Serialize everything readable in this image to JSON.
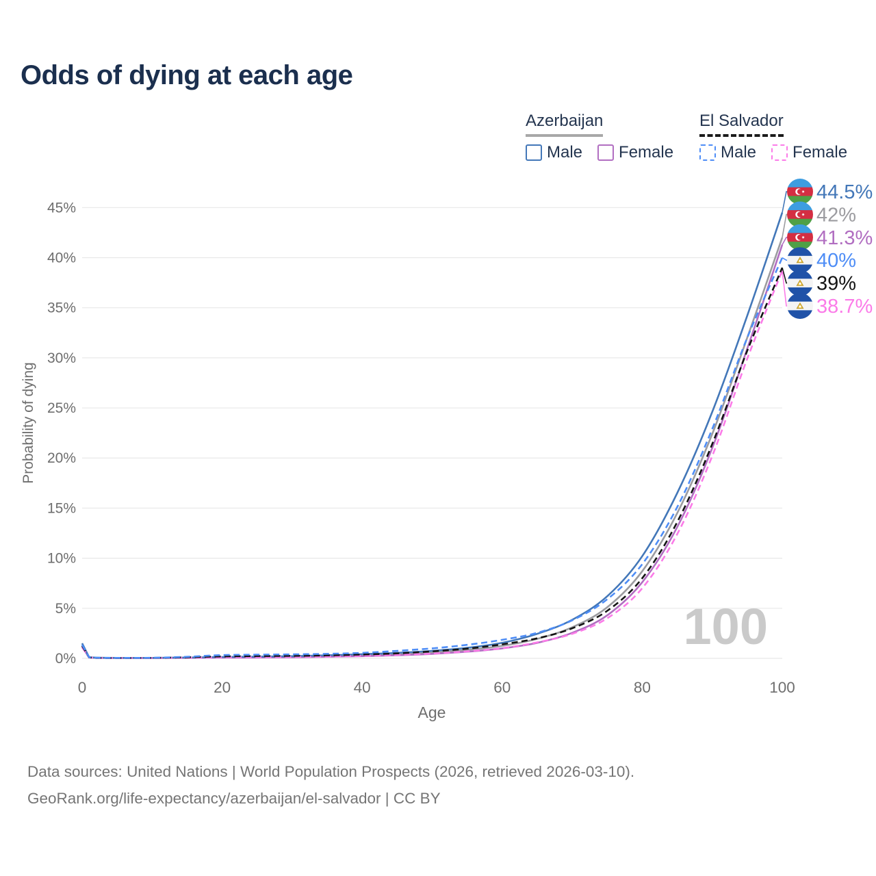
{
  "title": "Odds of dying at each age",
  "legend": {
    "groups": [
      {
        "id": "azerbaijan",
        "label": "Azerbaijan",
        "line_style": "solid",
        "line_color": "#a8a8a8",
        "items": [
          {
            "id": "male",
            "label": "Male",
            "color": "#4377b8",
            "dashed": false
          },
          {
            "id": "female",
            "label": "Female",
            "color": "#b16ec1",
            "dashed": false
          }
        ]
      },
      {
        "id": "el-salvador",
        "label": "El Salvador",
        "line_style": "dashed",
        "line_color": "#1b1b1b",
        "items": [
          {
            "id": "male",
            "label": "Male",
            "color": "#4e8df6",
            "dashed": true
          },
          {
            "id": "female",
            "label": "Female",
            "color": "#fb7be8",
            "dashed": true
          }
        ]
      }
    ]
  },
  "axes": {
    "x": {
      "label": "Age",
      "range": [
        0,
        100
      ],
      "ticks": [
        0,
        20,
        40,
        60,
        80,
        100
      ]
    },
    "y": {
      "label": "Probability of dying",
      "range": [
        0,
        45
      ],
      "tick_values": [
        0,
        5,
        10,
        15,
        20,
        25,
        30,
        35,
        40,
        45
      ],
      "tick_labels": [
        "0%",
        "5%",
        "10%",
        "15%",
        "20%",
        "25%",
        "30%",
        "35%",
        "40%",
        "45%"
      ]
    }
  },
  "watermark": "100",
  "chart_data": {
    "type": "line",
    "title": "Odds of dying at each age",
    "xlabel": "Age",
    "ylabel": "Probability of dying",
    "x": [
      0,
      1,
      2,
      5,
      10,
      15,
      20,
      25,
      30,
      35,
      40,
      45,
      50,
      55,
      60,
      65,
      70,
      75,
      80,
      85,
      90,
      95,
      100
    ],
    "series": [
      {
        "name": "Azerbaijan Both sexes",
        "country": "Azerbaijan",
        "sex": "both",
        "color": "#9c9ca0",
        "dashed": false,
        "flag": "azerbaijan",
        "end_label": "42%",
        "values": [
          1.3,
          0.1,
          0.06,
          0.04,
          0.04,
          0.06,
          0.1,
          0.13,
          0.17,
          0.23,
          0.32,
          0.43,
          0.6,
          0.85,
          1.25,
          1.95,
          3.1,
          5.1,
          8.7,
          14.5,
          22.4,
          32.0,
          42.0
        ]
      },
      {
        "name": "Azerbaijan Female",
        "country": "Azerbaijan",
        "sex": "female",
        "color": "#b16ec1",
        "dashed": false,
        "flag": "azerbaijan",
        "end_label": "41.3%",
        "values": [
          1.15,
          0.09,
          0.05,
          0.04,
          0.04,
          0.05,
          0.07,
          0.08,
          0.11,
          0.16,
          0.22,
          0.31,
          0.45,
          0.67,
          1.0,
          1.55,
          2.55,
          4.3,
          7.6,
          13.1,
          21.0,
          30.9,
          41.3
        ]
      },
      {
        "name": "Azerbaijan Male",
        "country": "Azerbaijan",
        "sex": "male",
        "color": "#4377b8",
        "dashed": false,
        "flag": "azerbaijan",
        "end_label": "44.5%",
        "values": [
          1.5,
          0.12,
          0.07,
          0.05,
          0.05,
          0.08,
          0.14,
          0.17,
          0.22,
          0.3,
          0.42,
          0.55,
          0.75,
          1.05,
          1.55,
          2.45,
          3.85,
          6.2,
          10.2,
          16.5,
          24.6,
          34.2,
          44.5
        ]
      },
      {
        "name": "El Salvador Female",
        "country": "El Salvador",
        "sex": "female",
        "color": "#fb7be8",
        "dashed": true,
        "flag": "el-salvador",
        "end_label": "38.7%",
        "values": [
          1.1,
          0.09,
          0.05,
          0.04,
          0.04,
          0.07,
          0.1,
          0.12,
          0.14,
          0.18,
          0.25,
          0.34,
          0.48,
          0.7,
          1.02,
          1.6,
          2.45,
          4.0,
          7.0,
          12.4,
          20.2,
          29.9,
          38.7
        ]
      },
      {
        "name": "El Salvador Both sexes",
        "country": "El Salvador",
        "sex": "both",
        "color": "#141414",
        "dashed": true,
        "flag": "el-salvador",
        "end_label": "39%",
        "values": [
          1.25,
          0.1,
          0.05,
          0.04,
          0.05,
          0.11,
          0.2,
          0.23,
          0.25,
          0.3,
          0.38,
          0.5,
          0.7,
          0.97,
          1.4,
          2.0,
          3.0,
          4.75,
          8.0,
          13.6,
          21.4,
          30.7,
          39.0
        ]
      },
      {
        "name": "El Salvador Male",
        "country": "El Salvador",
        "sex": "male",
        "color": "#4e8df6",
        "dashed": true,
        "flag": "el-salvador",
        "end_label": "40%",
        "values": [
          1.35,
          0.11,
          0.06,
          0.05,
          0.06,
          0.16,
          0.33,
          0.37,
          0.4,
          0.45,
          0.55,
          0.75,
          1.0,
          1.35,
          1.85,
          2.55,
          3.8,
          5.9,
          9.4,
          15.1,
          22.9,
          32.0,
          40.0
        ]
      }
    ]
  },
  "flag_colors": {
    "azerbaijan": {
      "top": "#3d9de0",
      "middle": "#d42e42",
      "bottom": "#4fa046",
      "crescent": "#ffffff"
    },
    "el_salvador": {
      "band": "#2052a8",
      "middle": "#f4f4f4",
      "emblem_gold": "#eec43e",
      "emblem_edge": "#b9952c"
    }
  },
  "footer": {
    "line1": "Data sources: United Nations | World Population Prospects (2026, retrieved 2026-03-10).",
    "line2": "GeoRank.org/life-expectancy/azerbaijan/el-salvador | CC BY"
  }
}
